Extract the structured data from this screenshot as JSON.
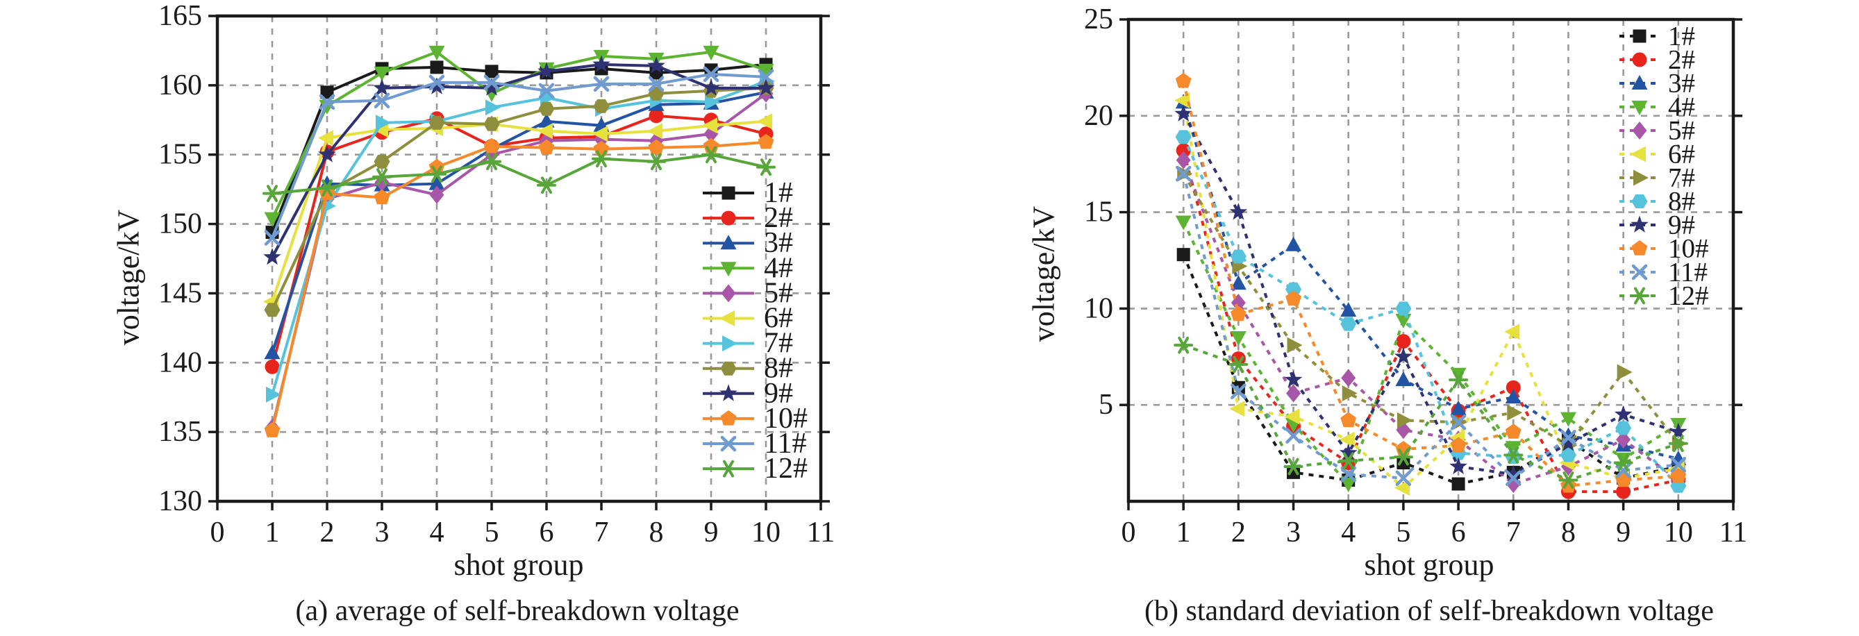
{
  "page": {
    "background": "#ffffff"
  },
  "chart_data": [
    {
      "type": "line",
      "title": "(a) average of self-breakdown voltage",
      "xlabel": "shot group",
      "ylabel": "voltage/kV",
      "xlim": [
        0,
        11
      ],
      "ylim": [
        130,
        165
      ],
      "xticks": [
        0,
        1,
        2,
        3,
        4,
        5,
        6,
        7,
        8,
        9,
        10,
        11
      ],
      "yticks": [
        130,
        135,
        140,
        145,
        150,
        155,
        160,
        165
      ],
      "grid": true,
      "legend_position": "inside-right",
      "line_style": "solid",
      "x": [
        1,
        2,
        3,
        4,
        5,
        6,
        7,
        8,
        9,
        10
      ],
      "series": [
        {
          "name": "1#",
          "color": "#1a1a1a",
          "marker": "square",
          "values": [
            149.4,
            159.5,
            161.2,
            161.3,
            161.0,
            160.9,
            161.2,
            160.9,
            161.1,
            161.5
          ]
        },
        {
          "name": "2#",
          "color": "#e8251d",
          "marker": "circle",
          "values": [
            139.7,
            155.2,
            156.6,
            157.6,
            155.6,
            156.2,
            156.3,
            157.8,
            157.5,
            156.5
          ]
        },
        {
          "name": "3#",
          "color": "#2353a5",
          "marker": "triangle-up",
          "values": [
            140.7,
            152.9,
            152.8,
            152.9,
            155.4,
            157.4,
            157.1,
            158.6,
            158.7,
            159.5
          ]
        },
        {
          "name": "4#",
          "color": "#5cb431",
          "marker": "triangle-down",
          "values": [
            150.4,
            158.5,
            160.9,
            162.4,
            159.4,
            161.2,
            162.1,
            161.9,
            162.4,
            161.1
          ]
        },
        {
          "name": "5#",
          "color": "#a857a8",
          "marker": "diamond",
          "values": [
            135.3,
            151.8,
            153.0,
            152.1,
            155.0,
            156.0,
            156.1,
            156.0,
            156.5,
            159.4
          ]
        },
        {
          "name": "6#",
          "color": "#e7e13e",
          "marker": "triangle-left",
          "values": [
            144.4,
            156.2,
            156.8,
            156.9,
            157.2,
            156.7,
            156.5,
            156.7,
            157.1,
            157.4
          ]
        },
        {
          "name": "7#",
          "color": "#55c3dc",
          "marker": "triangle-right",
          "values": [
            137.7,
            151.3,
            157.3,
            157.4,
            158.4,
            159.1,
            158.3,
            158.9,
            158.8,
            160.3
          ]
        },
        {
          "name": "8#",
          "color": "#8f8e3d",
          "marker": "hexagon",
          "values": [
            143.8,
            152.3,
            154.5,
            157.3,
            157.2,
            158.3,
            158.5,
            159.4,
            159.6,
            159.8
          ]
        },
        {
          "name": "9#",
          "color": "#2e3273",
          "marker": "star",
          "values": [
            147.6,
            155.0,
            159.8,
            159.9,
            159.8,
            161.0,
            161.5,
            161.4,
            159.8,
            159.8
          ]
        },
        {
          "name": "10#",
          "color": "#f68a2a",
          "marker": "pentagon",
          "values": [
            135.1,
            152.2,
            151.9,
            154.1,
            155.6,
            155.5,
            155.4,
            155.5,
            155.6,
            155.9
          ]
        },
        {
          "name": "11#",
          "color": "#6f9bd1",
          "marker": "x",
          "values": [
            149.0,
            158.8,
            158.9,
            160.2,
            160.2,
            159.6,
            160.1,
            160.1,
            160.8,
            160.6
          ]
        },
        {
          "name": "12#",
          "color": "#57a639",
          "marker": "asterisk",
          "values": [
            152.2,
            152.6,
            153.4,
            153.6,
            154.5,
            152.8,
            154.7,
            154.5,
            155.0,
            154.1
          ]
        }
      ]
    },
    {
      "type": "line",
      "title": "(b) standard deviation of self-breakdown voltage",
      "xlabel": "shot group",
      "ylabel": "voltage/kV",
      "xlim": [
        0,
        11
      ],
      "ylim": [
        0,
        25
      ],
      "xticks": [
        0,
        1,
        2,
        3,
        4,
        5,
        6,
        7,
        8,
        9,
        10,
        11
      ],
      "yticks": [
        5,
        10,
        15,
        20,
        25
      ],
      "grid": true,
      "legend_position": "top-right",
      "line_style": "dotted",
      "x": [
        1,
        2,
        3,
        4,
        5,
        6,
        7,
        8,
        9,
        10
      ],
      "series": [
        {
          "name": "1#",
          "color": "#1a1a1a",
          "marker": "square",
          "values": [
            12.8,
            5.9,
            1.5,
            1.1,
            2.0,
            0.9,
            1.5,
            3.2,
            1.2,
            1.8
          ]
        },
        {
          "name": "2#",
          "color": "#e8251d",
          "marker": "circle",
          "values": [
            18.2,
            7.4,
            3.9,
            2.0,
            8.3,
            4.7,
            5.9,
            0.5,
            0.5,
            1.1
          ]
        },
        {
          "name": "3#",
          "color": "#2353a5",
          "marker": "triangle-up",
          "values": [
            20.7,
            11.3,
            13.3,
            9.9,
            6.3,
            4.8,
            5.4,
            3.4,
            2.9,
            2.2
          ]
        },
        {
          "name": "4#",
          "color": "#5cb431",
          "marker": "triangle-down",
          "values": [
            14.5,
            8.5,
            4.0,
            0.9,
            9.4,
            6.6,
            2.8,
            4.3,
            2.2,
            4.0
          ]
        },
        {
          "name": "5#",
          "color": "#a857a8",
          "marker": "diamond",
          "values": [
            17.7,
            10.3,
            5.6,
            6.4,
            3.7,
            3.2,
            0.9,
            1.8,
            3.2,
            1.1
          ]
        },
        {
          "name": "6#",
          "color": "#e7e13e",
          "marker": "triangle-left",
          "values": [
            20.8,
            4.8,
            4.4,
            3.2,
            0.7,
            3.3,
            8.8,
            2.0,
            1.2,
            1.7
          ]
        },
        {
          "name": "7#",
          "color": "#8f8e3d",
          "marker": "triangle-right",
          "values": [
            17.0,
            12.2,
            8.1,
            5.6,
            4.2,
            4.1,
            4.6,
            2.9,
            6.7,
            3.0
          ]
        },
        {
          "name": "8#",
          "color": "#55c3dc",
          "marker": "hexagon",
          "values": [
            18.9,
            12.7,
            11.0,
            9.2,
            10.0,
            2.5,
            2.3,
            2.4,
            3.8,
            0.8
          ]
        },
        {
          "name": "9#",
          "color": "#2e3273",
          "marker": "star",
          "values": [
            20.1,
            15.0,
            6.3,
            2.5,
            7.5,
            1.8,
            1.4,
            3.0,
            4.5,
            3.6
          ]
        },
        {
          "name": "10#",
          "color": "#f68a2a",
          "marker": "pentagon",
          "values": [
            21.8,
            9.7,
            10.5,
            4.2,
            2.7,
            2.9,
            3.6,
            0.8,
            1.1,
            1.3
          ]
        },
        {
          "name": "11#",
          "color": "#6f9bd1",
          "marker": "x",
          "values": [
            17.0,
            5.7,
            3.4,
            1.4,
            1.2,
            4.1,
            1.2,
            3.3,
            1.6,
            1.9
          ]
        },
        {
          "name": "12#",
          "color": "#57a639",
          "marker": "asterisk",
          "values": [
            8.1,
            7.1,
            1.8,
            2.1,
            2.3,
            6.3,
            2.4,
            1.1,
            2.0,
            3.0
          ]
        }
      ]
    }
  ]
}
